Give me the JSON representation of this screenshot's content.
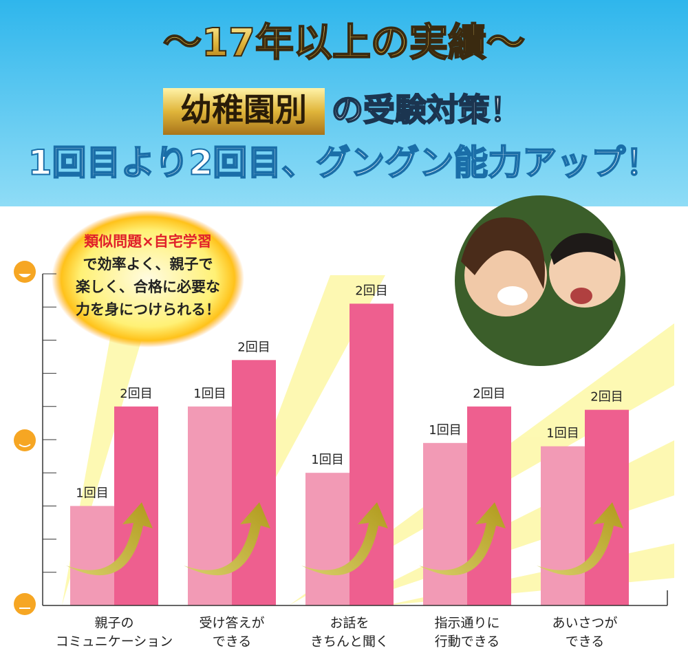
{
  "header": {
    "title": "〜17年以上の実績〜",
    "badge": "幼稚園別",
    "line2": "の受験対策！",
    "line3": "1回目より2回目、グングン能力アップ！"
  },
  "bubble": {
    "highlight": "類似問題×自宅学習",
    "lines": [
      "で効率よく、親子で",
      "楽しく、合格に必要な",
      "力を身につけられる！"
    ]
  },
  "chart_data": {
    "type": "bar",
    "categories": [
      [
        "親子の",
        "コミュニケーション"
      ],
      [
        "受け答えが",
        "できる"
      ],
      [
        "お話を",
        "きちんと聞く"
      ],
      [
        "指示通りに",
        "行動できる"
      ],
      [
        "あいさつが",
        "できる"
      ]
    ],
    "series": [
      {
        "name": "1回目",
        "color": "#f29ab5",
        "values": [
          3,
          6,
          4,
          4.9,
          4.8
        ]
      },
      {
        "name": "2回目",
        "color": "#ee5f8f",
        "values": [
          6,
          7.4,
          9.1,
          6,
          5.9
        ]
      }
    ],
    "ylim": [
      0,
      10
    ],
    "yticks": [
      0,
      1,
      2,
      3,
      4,
      5,
      6,
      7,
      8,
      9,
      10
    ]
  }
}
